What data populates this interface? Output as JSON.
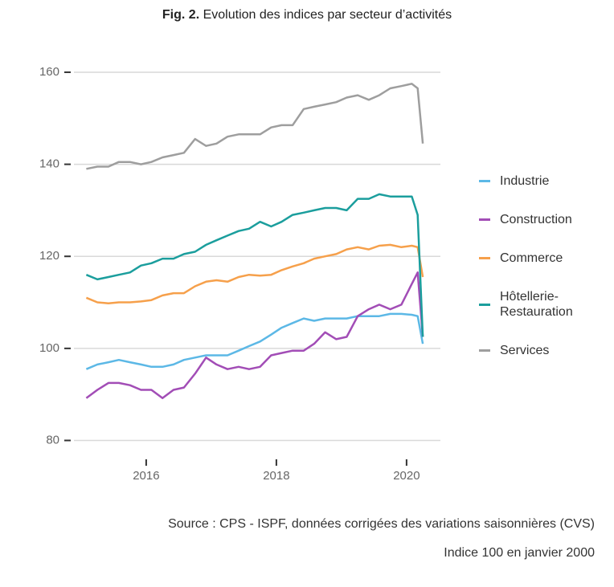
{
  "chart_data": {
    "type": "line",
    "title_label": "Fig. 2.",
    "title": "Evolution des indices par secteur d’activités",
    "source": "Source : CPS - ISPF, données corrigées des variations saisonnières (CVS)",
    "note": "Indice 100 en janvier 2000",
    "x": [
      2015.08,
      2015.25,
      2015.42,
      2015.58,
      2015.75,
      2015.92,
      2016.08,
      2016.25,
      2016.42,
      2016.58,
      2016.75,
      2016.92,
      2017.08,
      2017.25,
      2017.42,
      2017.58,
      2017.75,
      2017.92,
      2018.08,
      2018.25,
      2018.42,
      2018.58,
      2018.75,
      2018.92,
      2019.08,
      2019.25,
      2019.42,
      2019.58,
      2019.75,
      2019.92,
      2020.08,
      2020.17,
      2020.25
    ],
    "series": [
      {
        "name": "Industrie",
        "color": "#5cb8e6",
        "values": [
          95.5,
          96.5,
          97,
          97.5,
          97,
          96.5,
          96,
          96,
          96.5,
          97.5,
          98,
          98.5,
          98.5,
          98.5,
          99.5,
          100.5,
          101.5,
          103,
          104.5,
          105.5,
          106.5,
          106,
          106.5,
          106.5,
          106.5,
          107,
          107,
          107,
          107.5,
          107.5,
          107.3,
          107,
          101
        ]
      },
      {
        "name": "Construction",
        "color": "#a24db6",
        "values": [
          89.2,
          91,
          92.5,
          92.5,
          92,
          91,
          91,
          89.2,
          91,
          91.5,
          94.5,
          98,
          96.5,
          95.5,
          96,
          95.5,
          96,
          98.5,
          99,
          99.5,
          99.5,
          101,
          103.5,
          102,
          102.5,
          107,
          108.5,
          109.5,
          108.5,
          109.5,
          114,
          116.5,
          102.5
        ]
      },
      {
        "name": "Commerce",
        "color": "#f6a04b",
        "values": [
          111,
          110,
          109.8,
          110,
          110,
          110.2,
          110.5,
          111.5,
          112,
          112,
          113.5,
          114.5,
          114.8,
          114.5,
          115.5,
          116,
          115.8,
          116,
          117,
          117.8,
          118.5,
          119.5,
          120,
          120.5,
          121.5,
          122,
          121.5,
          122.3,
          122.5,
          122,
          122.3,
          122,
          115.5
        ]
      },
      {
        "name": "Hôtellerie-Restauration",
        "color": "#1b9e9d",
        "values": [
          116,
          115,
          115.5,
          116,
          116.5,
          118,
          118.5,
          119.5,
          119.5,
          120.5,
          121,
          122.5,
          123.5,
          124.5,
          125.5,
          126,
          127.5,
          126.5,
          127.5,
          129,
          129.5,
          130,
          130.5,
          130.5,
          130,
          132.5,
          132.5,
          133.5,
          133,
          133,
          133,
          129,
          102.5
        ]
      },
      {
        "name": "Services",
        "color": "#9e9e9e",
        "values": [
          139,
          139.5,
          139.5,
          140.5,
          140.5,
          140,
          140.5,
          141.5,
          142,
          142.5,
          145.5,
          144,
          144.5,
          146,
          146.5,
          146.5,
          146.5,
          148,
          148.5,
          148.5,
          152,
          152.5,
          153,
          153.5,
          154.5,
          155,
          154,
          155,
          156.5,
          157,
          157.5,
          156.5,
          144.5
        ]
      }
    ],
    "xlim": [
      2014.89,
      2020.52
    ],
    "xticks": [
      2016,
      2018,
      2020
    ],
    "ylim": [
      75.9,
      165
    ],
    "yticks": [
      80,
      100,
      120,
      140,
      160
    ],
    "grid": true,
    "legend": "right"
  }
}
